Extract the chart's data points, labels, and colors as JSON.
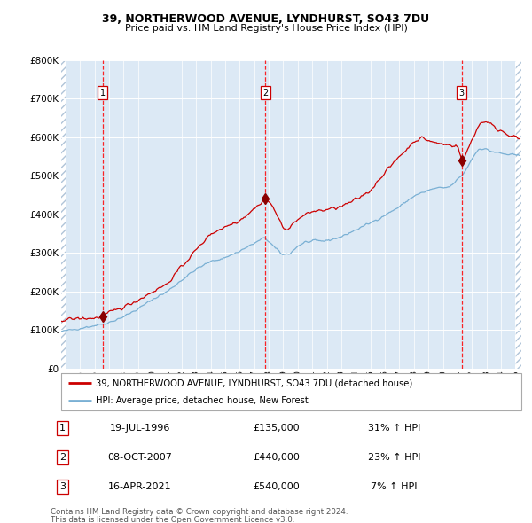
{
  "title1": "39, NORTHERWOOD AVENUE, LYNDHURST, SO43 7DU",
  "title2": "Price paid vs. HM Land Registry's House Price Index (HPI)",
  "legend1_label": "39, NORTHERWOOD AVENUE, LYNDHURST, SO43 7DU (detached house)",
  "legend2_label": "HPI: Average price, detached house, New Forest",
  "footer1": "Contains HM Land Registry data © Crown copyright and database right 2024.",
  "footer2": "This data is licensed under the Open Government Licence v3.0.",
  "table_rows": [
    {
      "num": "1",
      "date": "19-JUL-1996",
      "price": "£135,000",
      "hpi": "31% ↑ HPI"
    },
    {
      "num": "2",
      "date": "08-OCT-2007",
      "price": "£440,000",
      "hpi": "23% ↑ HPI"
    },
    {
      "num": "3",
      "date": "16-APR-2021",
      "price": "£540,000",
      "hpi": "7% ↑ HPI"
    }
  ],
  "red_color": "#cc0000",
  "blue_color": "#7ab0d4",
  "bg_color": "#dce9f5",
  "ylim": [
    0,
    800000
  ],
  "yticks": [
    0,
    100000,
    200000,
    300000,
    400000,
    500000,
    600000,
    700000,
    800000
  ],
  "ytick_labels": [
    "£0",
    "£100K",
    "£200K",
    "£300K",
    "£400K",
    "£500K",
    "£600K",
    "£700K",
    "£800K"
  ],
  "sale_years": [
    1996.55,
    2007.77,
    2021.29
  ],
  "sale_prices": [
    135000,
    440000,
    540000
  ],
  "sale_labels": [
    "1",
    "2",
    "3"
  ],
  "xmin": 1993.7,
  "xmax": 2025.4
}
